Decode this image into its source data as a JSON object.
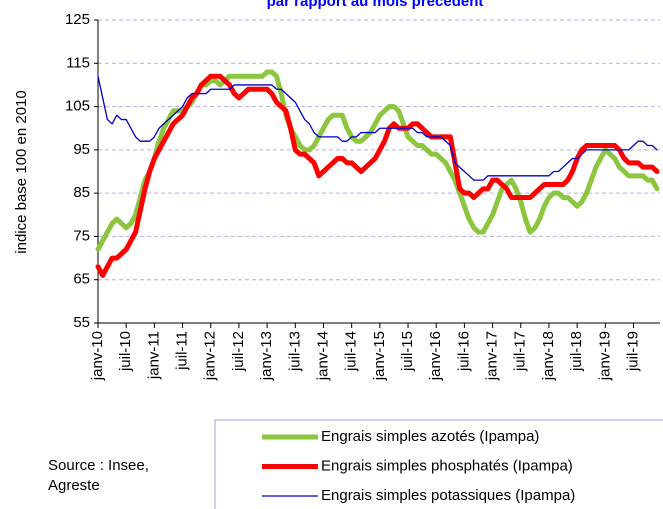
{
  "chart_data": {
    "type": "line",
    "title": "par rapport au mois précédent",
    "y_label": "indice base 100 en 2010",
    "source": [
      "Source : Insee,",
      "Agreste"
    ],
    "categories": [
      "janv-10",
      null,
      null,
      null,
      null,
      null,
      "juil-10",
      null,
      null,
      null,
      null,
      null,
      "janv-11",
      null,
      null,
      null,
      null,
      null,
      "juil-11",
      null,
      null,
      null,
      null,
      null,
      "janv-12",
      null,
      null,
      null,
      null,
      null,
      "juil-12",
      null,
      null,
      null,
      null,
      null,
      "janv-13",
      null,
      null,
      null,
      null,
      null,
      "juil-13",
      null,
      null,
      null,
      null,
      null,
      "janv-14",
      null,
      null,
      null,
      null,
      null,
      "juil-14",
      null,
      null,
      null,
      null,
      null,
      "janv-15",
      null,
      null,
      null,
      null,
      null,
      "juil-15",
      null,
      null,
      null,
      null,
      null,
      "janv-16",
      null,
      null,
      null,
      null,
      null,
      "juil-16",
      null,
      null,
      null,
      null,
      null,
      "janv-17",
      null,
      null,
      null,
      null,
      null,
      "juil-17",
      null,
      null,
      null,
      null,
      null,
      "janv-18",
      null,
      null,
      null,
      null,
      null,
      "juil-18",
      null,
      null,
      null,
      null,
      null,
      "janv-19",
      null,
      null,
      null,
      null,
      null,
      "juil-19",
      null,
      null,
      null,
      null,
      null
    ],
    "series": [
      {
        "name": "Engrais simples azotés (Ipampa)",
        "color": "#8cc63e",
        "width": 5,
        "values": [
          72,
          74,
          76,
          78,
          79,
          78,
          77,
          78,
          80,
          84,
          88,
          90,
          93,
          97,
          100,
          102,
          104,
          104,
          104,
          105,
          106,
          108,
          110,
          110,
          111,
          111,
          110,
          111,
          112,
          112,
          112,
          112,
          112,
          112,
          112,
          112,
          113,
          113,
          112,
          108,
          103,
          100,
          98,
          96,
          95,
          95,
          96,
          98,
          100,
          102,
          103,
          103,
          103,
          100,
          98,
          97,
          97,
          98,
          99,
          101,
          103,
          104,
          105,
          105,
          104,
          101,
          98,
          97,
          96,
          96,
          95,
          94,
          94,
          93,
          92,
          90,
          88,
          85,
          82,
          79,
          77,
          76,
          76,
          78,
          80,
          83,
          86,
          87,
          88,
          86,
          83,
          79,
          76,
          77,
          79,
          82,
          84,
          85,
          85,
          84,
          84,
          83,
          82,
          83,
          85,
          88,
          91,
          93,
          95,
          94,
          93,
          91,
          90,
          89,
          89,
          89,
          89,
          88,
          88,
          86
        ]
      },
      {
        "name": "Engrais simples phosphatés (Ipampa)",
        "color": "#ff0000",
        "width": 5,
        "values": [
          68,
          66,
          68,
          70,
          70,
          71,
          72,
          74,
          76,
          81,
          86,
          90,
          93,
          95,
          97,
          99,
          101,
          102,
          103,
          105,
          107,
          108,
          110,
          111,
          112,
          112,
          112,
          111,
          110,
          108,
          107,
          108,
          109,
          109,
          109,
          109,
          109,
          108,
          106,
          105,
          104,
          100,
          95,
          94,
          94,
          93,
          92,
          89,
          90,
          91,
          92,
          93,
          93,
          92,
          92,
          91,
          90,
          91,
          92,
          93,
          95,
          97,
          100,
          101,
          100,
          100,
          100,
          101,
          101,
          100,
          99,
          98,
          98,
          98,
          98,
          98,
          92,
          86,
          85,
          85,
          84,
          85,
          86,
          86,
          88,
          88,
          87,
          86,
          84,
          84,
          84,
          84,
          84,
          85,
          86,
          87,
          87,
          87,
          87,
          87,
          88,
          90,
          93,
          95,
          96,
          96,
          96,
          96,
          96,
          96,
          96,
          95,
          93,
          92,
          92,
          92,
          91,
          91,
          91,
          90
        ]
      },
      {
        "name": "Engrais simples potassiques (Ipampa)",
        "color": "#0000cc",
        "width": 1.3,
        "values": [
          112,
          107,
          102,
          101,
          103,
          102,
          102,
          100,
          98,
          97,
          97,
          97,
          98,
          100,
          101,
          102,
          103,
          104,
          105,
          107,
          108,
          108,
          108,
          108,
          109,
          109,
          109,
          109,
          109,
          110,
          110,
          110,
          110,
          110,
          110,
          110,
          110,
          110,
          109,
          109,
          108,
          107,
          106,
          104,
          102,
          101,
          99,
          98,
          98,
          98,
          98,
          98,
          97,
          97,
          98,
          98,
          99,
          99,
          99,
          99,
          100,
          100,
          100,
          100,
          100,
          100,
          100,
          100,
          99,
          99,
          98,
          98,
          98,
          98,
          97,
          96,
          92,
          91,
          90,
          89,
          88,
          88,
          88,
          89,
          89,
          89,
          89,
          89,
          89,
          89,
          89,
          89,
          89,
          89,
          89,
          89,
          89,
          90,
          90,
          91,
          92,
          93,
          93,
          94,
          95,
          95,
          95,
          95,
          95,
          95,
          95,
          95,
          95,
          95,
          96,
          97,
          97,
          96,
          96,
          95
        ]
      }
    ],
    "ylim": [
      55,
      125
    ],
    "yticks": [
      55,
      65,
      75,
      85,
      95,
      105,
      115,
      125
    ],
    "grid": true
  }
}
